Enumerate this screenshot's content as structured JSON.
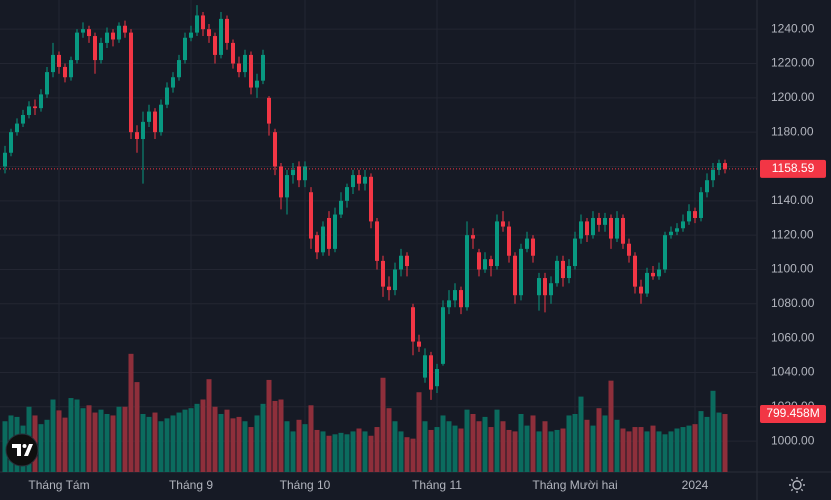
{
  "chart_data": {
    "type": "candlestick",
    "up_color": "#089981",
    "down_color": "#f23645",
    "volume_up_color": "#0b6b5e",
    "volume_down_color": "#8e2f3b",
    "ylim": [
      982,
      1257
    ],
    "yticks": [
      {
        "value": 1000,
        "label": "1000.00"
      },
      {
        "value": 1020,
        "label": "1020.00"
      },
      {
        "value": 1040,
        "label": "1040.00"
      },
      {
        "value": 1060,
        "label": "1060.00"
      },
      {
        "value": 1080,
        "label": "1080.00"
      },
      {
        "value": 1100,
        "label": "1100.00"
      },
      {
        "value": 1120,
        "label": "1120.00"
      },
      {
        "value": 1140,
        "label": "1140.00"
      },
      {
        "value": 1160,
        "label": "1160.00"
      },
      {
        "value": 1180,
        "label": "1180.00"
      },
      {
        "value": 1200,
        "label": "1200.00"
      },
      {
        "value": 1220,
        "label": "1220.00"
      },
      {
        "value": 1240,
        "label": "1240.00"
      }
    ],
    "xticks": [
      {
        "value": 9,
        "label": "Tháng Tám"
      },
      {
        "value": 31,
        "label": "Tháng 9"
      },
      {
        "value": 50,
        "label": "Tháng 10"
      },
      {
        "value": 72,
        "label": "Tháng 11"
      },
      {
        "value": 95,
        "label": "Tháng Mười hai"
      },
      {
        "value": 115,
        "label": "2024"
      }
    ],
    "grid": true,
    "open": [
      1160,
      1168,
      1180,
      1185,
      1190,
      1195,
      1194,
      1202,
      1215,
      1225,
      1218,
      1212,
      1222,
      1238,
      1240,
      1236,
      1222,
      1232,
      1238,
      1234,
      1242,
      1238,
      1180,
      1176,
      1186,
      1192,
      1180,
      1196,
      1206,
      1212,
      1222,
      1235,
      1238,
      1248,
      1240,
      1236,
      1225,
      1246,
      1232,
      1220,
      1215,
      1225,
      1206,
      1210,
      1200,
      1180,
      1160,
      1142,
      1155,
      1160,
      1152,
      1145,
      1120,
      1110,
      1130,
      1112,
      1132,
      1140,
      1148,
      1155,
      1150,
      1154,
      1128,
      1105,
      1090,
      1088,
      1100,
      1108,
      1078,
      1058,
      1037,
      1050,
      1032,
      1045,
      1078,
      1082,
      1088,
      1078,
      1120,
      1110,
      1100,
      1106,
      1102,
      1128,
      1125,
      1108,
      1085,
      1112,
      1118,
      1085,
      1095,
      1085,
      1092,
      1105,
      1095,
      1102,
      1118,
      1128,
      1120,
      1130,
      1126,
      1130,
      1118,
      1130,
      1115,
      1108,
      1090,
      1086,
      1098,
      1096,
      1100,
      1120,
      1122,
      1124,
      1128,
      1134,
      1130,
      1145,
      1152,
      1158,
      1162
    ],
    "high": [
      1172,
      1182,
      1188,
      1193,
      1198,
      1199,
      1205,
      1218,
      1232,
      1227,
      1220,
      1224,
      1240,
      1244,
      1242,
      1238,
      1235,
      1241,
      1240,
      1244,
      1245,
      1240,
      1184,
      1192,
      1196,
      1194,
      1199,
      1209,
      1215,
      1225,
      1238,
      1242,
      1254,
      1250,
      1243,
      1238,
      1250,
      1248,
      1234,
      1224,
      1228,
      1227,
      1214,
      1228,
      1201,
      1182,
      1162,
      1158,
      1162,
      1163,
      1163,
      1148,
      1122,
      1128,
      1134,
      1136,
      1145,
      1150,
      1158,
      1158,
      1158,
      1156,
      1130,
      1108,
      1096,
      1104,
      1112,
      1110,
      1080,
      1062,
      1054,
      1052,
      1045,
      1082,
      1088,
      1092,
      1090,
      1128,
      1124,
      1112,
      1110,
      1108,
      1132,
      1134,
      1128,
      1110,
      1115,
      1122,
      1120,
      1098,
      1098,
      1096,
      1108,
      1108,
      1106,
      1122,
      1132,
      1130,
      1134,
      1133,
      1133,
      1132,
      1134,
      1132,
      1118,
      1110,
      1094,
      1101,
      1102,
      1104,
      1122,
      1125,
      1127,
      1132,
      1138,
      1136,
      1148,
      1156,
      1162,
      1164,
      1164
    ],
    "low": [
      1156,
      1166,
      1178,
      1183,
      1188,
      1190,
      1192,
      1200,
      1212,
      1214,
      1209,
      1210,
      1220,
      1235,
      1232,
      1214,
      1220,
      1229,
      1230,
      1232,
      1235,
      1176,
      1168,
      1150,
      1183,
      1176,
      1178,
      1194,
      1203,
      1210,
      1220,
      1233,
      1236,
      1236,
      1232,
      1220,
      1223,
      1228,
      1217,
      1212,
      1212,
      1202,
      1200,
      1208,
      1178,
      1155,
      1135,
      1132,
      1150,
      1148,
      1148,
      1112,
      1106,
      1108,
      1108,
      1110,
      1130,
      1136,
      1144,
      1146,
      1146,
      1124,
      1100,
      1084,
      1082,
      1085,
      1096,
      1096,
      1050,
      1052,
      1034,
      1024,
      1028,
      1044,
      1074,
      1078,
      1074,
      1076,
      1112,
      1096,
      1098,
      1096,
      1100,
      1122,
      1104,
      1080,
      1082,
      1110,
      1104,
      1076,
      1075,
      1080,
      1090,
      1090,
      1092,
      1100,
      1115,
      1116,
      1118,
      1122,
      1122,
      1112,
      1116,
      1112,
      1104,
      1086,
      1080,
      1084,
      1094,
      1094,
      1098,
      1118,
      1120,
      1122,
      1126,
      1127,
      1128,
      1142,
      1148,
      1155,
      1156
    ],
    "close": [
      1168,
      1180,
      1185,
      1190,
      1195,
      1194,
      1202,
      1215,
      1225,
      1218,
      1212,
      1222,
      1238,
      1240,
      1236,
      1222,
      1232,
      1238,
      1234,
      1242,
      1238,
      1180,
      1176,
      1186,
      1192,
      1180,
      1196,
      1206,
      1212,
      1222,
      1235,
      1238,
      1248,
      1240,
      1236,
      1225,
      1246,
      1232,
      1220,
      1215,
      1225,
      1206,
      1210,
      1225,
      1185,
      1160,
      1142,
      1155,
      1158,
      1152,
      1160,
      1118,
      1110,
      1125,
      1112,
      1132,
      1140,
      1148,
      1155,
      1150,
      1154,
      1128,
      1105,
      1090,
      1088,
      1100,
      1108,
      1102,
      1058,
      1055,
      1050,
      1030,
      1042,
      1078,
      1082,
      1088,
      1078,
      1120,
      1118,
      1100,
      1106,
      1102,
      1128,
      1125,
      1108,
      1085,
      1112,
      1118,
      1108,
      1095,
      1085,
      1092,
      1105,
      1095,
      1102,
      1118,
      1128,
      1120,
      1130,
      1126,
      1130,
      1118,
      1130,
      1115,
      1108,
      1090,
      1086,
      1098,
      1096,
      1100,
      1120,
      1122,
      1124,
      1128,
      1134,
      1130,
      1145,
      1152,
      1158,
      1162,
      1158.59
    ],
    "volume": [
      700,
      780,
      760,
      640,
      900,
      780,
      660,
      720,
      1000,
      850,
      750,
      1020,
      1000,
      880,
      920,
      820,
      860,
      800,
      780,
      900,
      900,
      1630,
      1240,
      800,
      760,
      820,
      700,
      740,
      780,
      820,
      860,
      880,
      940,
      1000,
      1280,
      900,
      800,
      860,
      740,
      760,
      700,
      620,
      780,
      940,
      1270,
      980,
      1000,
      700,
      560,
      720,
      660,
      920,
      580,
      560,
      500,
      520,
      540,
      520,
      560,
      600,
      560,
      500,
      620,
      1300,
      880,
      700,
      560,
      480,
      460,
      1100,
      700,
      580,
      620,
      780,
      700,
      640,
      600,
      860,
      800,
      700,
      760,
      620,
      860,
      700,
      580,
      560,
      800,
      640,
      780,
      560,
      700,
      560,
      580,
      600,
      780,
      800,
      1040,
      720,
      640,
      880,
      780,
      1260,
      720,
      600,
      560,
      620,
      620,
      560,
      640,
      560,
      520,
      560,
      600,
      620,
      640,
      660,
      840,
      760,
      1120,
      820,
      799.458
    ],
    "last_volume_label": "799.458M"
  }
}
